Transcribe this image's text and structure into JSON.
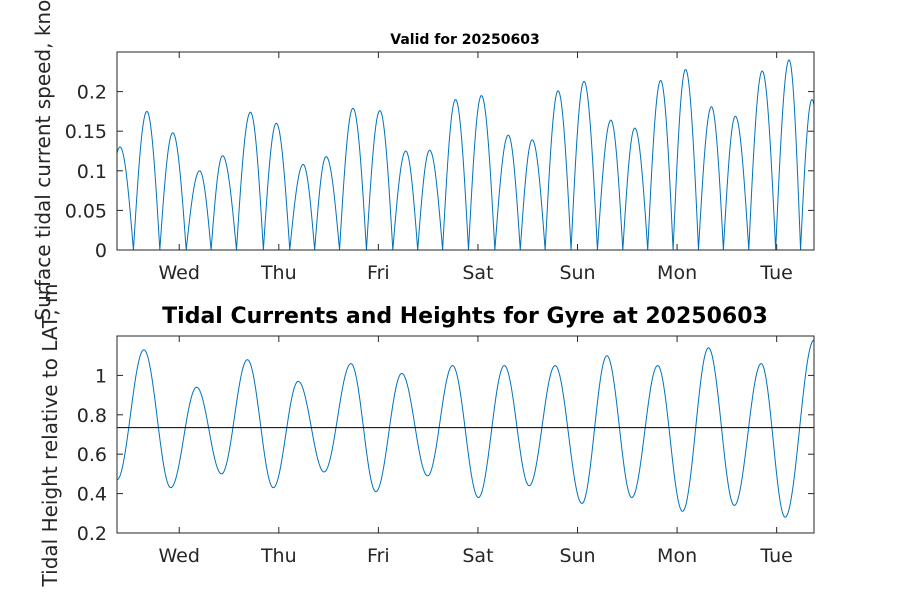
{
  "chart_data": [
    {
      "type": "line",
      "title": "Valid for 20250603",
      "ylabel": "Surface tidal current speed, knots",
      "xlabel": "",
      "xlim": [
        0,
        7
      ],
      "ylim": [
        0,
        0.25
      ],
      "yticks": [
        0,
        0.05,
        0.1,
        0.15,
        0.2
      ],
      "ytick_labels": [
        "0",
        "0.05",
        "0.1",
        "0.15",
        "0.2"
      ],
      "xticks": [
        0.625,
        1.625,
        2.625,
        3.625,
        4.625,
        5.625,
        6.625
      ],
      "xtick_labels": [
        "Wed",
        "Thu",
        "Fri",
        "Sat",
        "Sun",
        "Mon",
        "Tue"
      ],
      "series_color": "#0072BD",
      "peaks": {
        "x": [
          0.03,
          0.3,
          0.56,
          0.83,
          1.06,
          1.34,
          1.6,
          1.87,
          2.1,
          2.37,
          2.64,
          2.9,
          3.14,
          3.4,
          3.66,
          3.93,
          4.17,
          4.43,
          4.69,
          4.96,
          5.2,
          5.46,
          5.71,
          5.97,
          6.21,
          6.48,
          6.75,
          6.98
        ],
        "y": [
          0.13,
          0.175,
          0.148,
          0.1,
          0.119,
          0.174,
          0.16,
          0.108,
          0.118,
          0.179,
          0.176,
          0.125,
          0.126,
          0.19,
          0.195,
          0.145,
          0.139,
          0.201,
          0.213,
          0.164,
          0.154,
          0.214,
          0.228,
          0.181,
          0.169,
          0.226,
          0.24,
          0.19
        ]
      }
    },
    {
      "type": "line",
      "title": "Tidal Currents and Heights for Gyre at 20250603",
      "ylabel": "Tidal Height relative to LAT, m",
      "xlabel": "",
      "xlim": [
        0,
        7
      ],
      "ylim": [
        0.2,
        1.2
      ],
      "yticks": [
        0.2,
        0.4,
        0.6,
        0.8,
        1.0
      ],
      "ytick_labels": [
        "0.2",
        "0.4",
        "0.6",
        "0.8",
        "1"
      ],
      "xticks": [
        0.625,
        1.625,
        2.625,
        3.625,
        4.625,
        5.625,
        6.625
      ],
      "xtick_labels": [
        "Wed",
        "Thu",
        "Fri",
        "Sat",
        "Sun",
        "Mon",
        "Tue"
      ],
      "series_color": "#0072BD",
      "reference_line": 0.735,
      "extrema": {
        "x": [
          0.0,
          0.27,
          0.54,
          0.8,
          1.05,
          1.31,
          1.57,
          1.82,
          2.08,
          2.35,
          2.6,
          2.86,
          3.12,
          3.37,
          3.63,
          3.89,
          4.14,
          4.4,
          4.67,
          4.92,
          5.17,
          5.43,
          5.68,
          5.94,
          6.2,
          6.47,
          6.71,
          7.0
        ],
        "y": [
          0.47,
          1.13,
          0.43,
          0.94,
          0.5,
          1.08,
          0.43,
          0.97,
          0.51,
          1.06,
          0.41,
          1.01,
          0.49,
          1.05,
          0.38,
          1.05,
          0.44,
          1.05,
          0.35,
          1.1,
          0.38,
          1.05,
          0.31,
          1.14,
          0.34,
          1.06,
          0.28,
          1.18
        ]
      }
    }
  ]
}
